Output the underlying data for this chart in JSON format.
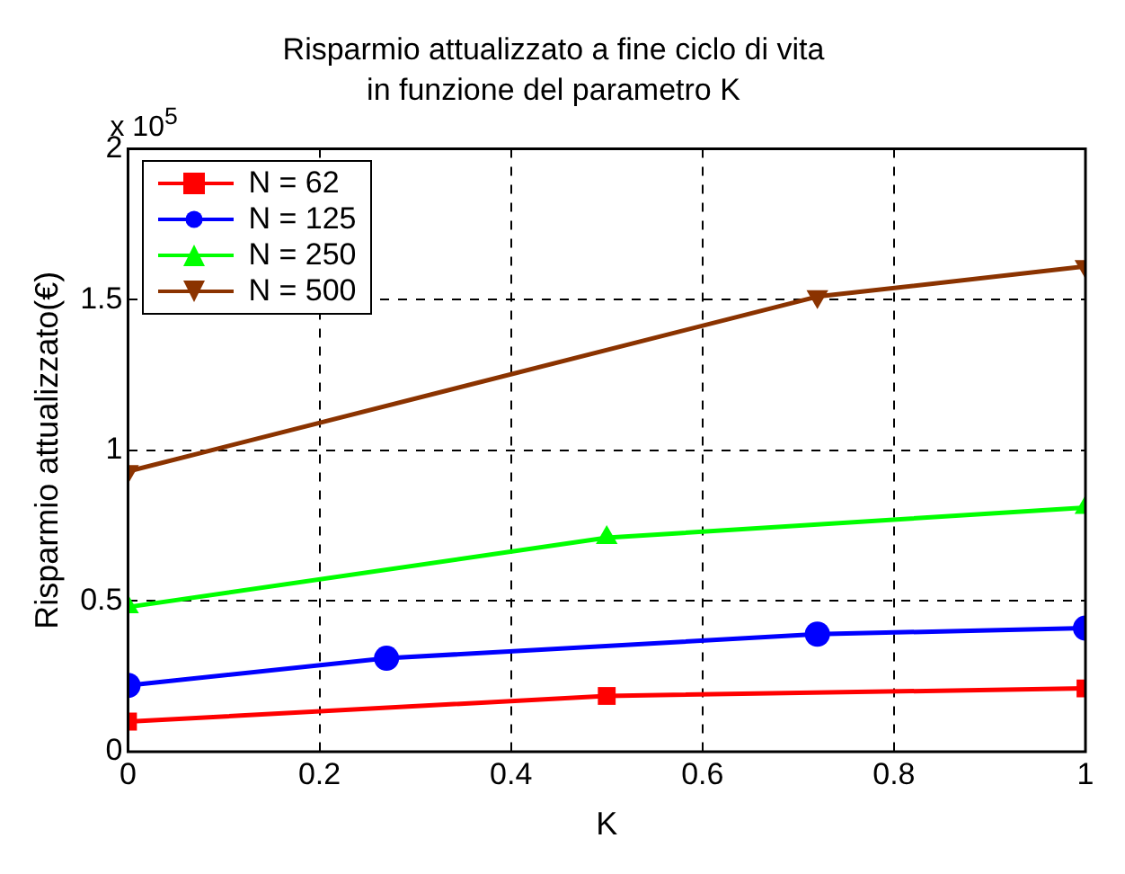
{
  "chart_data": {
    "type": "line",
    "title": "Risparmio attualizzato a fine ciclo di vita",
    "subtitle": "in funzione del parametro K",
    "xlabel": "K",
    "ylabel": "Risparmio attualizzato(€)",
    "annotations": [
      "x 10$^{5}$"
    ],
    "xlim": [
      0,
      1
    ],
    "xticks": [
      0,
      0.2,
      0.4,
      0.6,
      0.8,
      1
    ],
    "ylim": [
      0,
      2
    ],
    "yticks": [
      0,
      0.5,
      1,
      1.5,
      2
    ],
    "grid": true,
    "legend": "top left",
    "series": [
      {
        "name": "N = 62",
        "color": "#ff0000",
        "marker": "square",
        "x": [
          0,
          0.5,
          1
        ],
        "values": [
          0.1,
          0.185,
          0.21
        ]
      },
      {
        "name": "N = 125",
        "color": "#0000ff",
        "marker": "circle",
        "x": [
          0,
          0.27,
          0.72,
          1
        ],
        "values": [
          0.22,
          0.31,
          0.39,
          0.41
        ]
      },
      {
        "name": "N = 250",
        "color": "#00ff00",
        "marker": "triangle",
        "x": [
          0,
          0.5,
          1
        ],
        "values": [
          0.48,
          0.71,
          0.81
        ]
      },
      {
        "name": "N = 500",
        "color": "#8b3300",
        "marker": "triangle_down",
        "x": [
          0,
          0.72,
          1
        ],
        "values": [
          0.93,
          1.51,
          1.61
        ]
      }
    ]
  }
}
